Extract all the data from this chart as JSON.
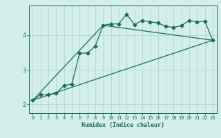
{
  "title": "",
  "xlabel": "Humidex (Indice chaleur)",
  "ylabel": "",
  "background_color": "#d4eeea",
  "line_color": "#1a6b5a",
  "grid_color": "#aed8d0",
  "xlim": [
    -0.5,
    23.5
  ],
  "ylim": [
    1.75,
    4.85
  ],
  "yticks": [
    2,
    3,
    4
  ],
  "xticks": [
    0,
    1,
    2,
    3,
    4,
    5,
    6,
    7,
    8,
    9,
    10,
    11,
    12,
    13,
    14,
    15,
    16,
    17,
    18,
    19,
    20,
    21,
    22,
    23
  ],
  "series1_x": [
    0,
    1,
    2,
    3,
    4,
    5,
    6,
    7,
    8,
    9,
    10,
    11,
    12,
    13,
    14,
    15,
    16,
    17,
    18,
    19,
    20,
    21,
    22,
    23
  ],
  "series1_y": [
    2.12,
    2.28,
    2.28,
    2.32,
    2.55,
    2.58,
    3.48,
    3.48,
    3.68,
    4.28,
    4.32,
    4.32,
    4.6,
    4.3,
    4.42,
    4.38,
    4.35,
    4.25,
    4.22,
    4.27,
    4.42,
    4.38,
    4.4,
    3.85
  ],
  "series2_x": [
    0,
    23
  ],
  "series2_y": [
    2.12,
    3.85
  ],
  "series3_x": [
    0,
    9,
    23
  ],
  "series3_y": [
    2.12,
    4.28,
    3.85
  ],
  "marker": "D",
  "marker_size": 2.5,
  "line_width": 0.9
}
